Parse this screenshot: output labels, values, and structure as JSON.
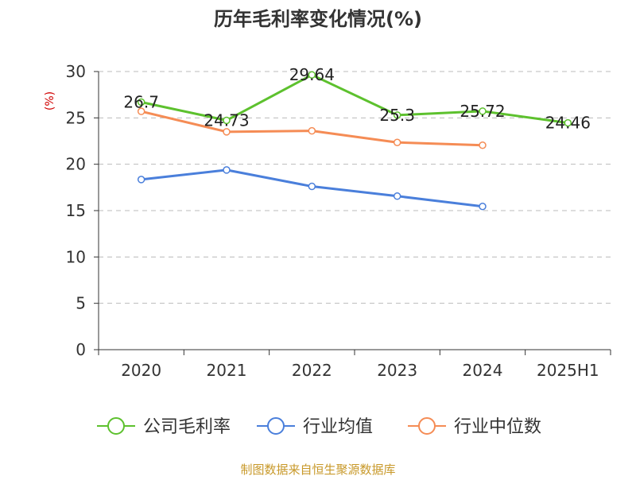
{
  "chart_data": {
    "type": "line",
    "title": "历年毛利率变化情况(%)",
    "ylabel": "(%)",
    "xlabel": "",
    "categories": [
      "2020",
      "2021",
      "2022",
      "2023",
      "2024",
      "2025H1"
    ],
    "ylim": [
      0,
      30
    ],
    "yticks": [
      0,
      5,
      10,
      15,
      20,
      25,
      30
    ],
    "grid": true,
    "legend_position": "bottom",
    "series": [
      {
        "name": "公司毛利率",
        "color": "#5dc12e",
        "values": [
          26.7,
          24.73,
          29.64,
          25.3,
          25.72,
          24.46
        ],
        "labels": [
          "26.7",
          "24.73",
          "29.64",
          "25.3",
          "25.72",
          "24.46"
        ]
      },
      {
        "name": "行业均值",
        "color": "#4a7fdb",
        "values": [
          18.35,
          19.38,
          17.61,
          16.56,
          15.45,
          null
        ]
      },
      {
        "name": "行业中位数",
        "color": "#f58c55",
        "values": [
          25.7,
          23.5,
          23.6,
          22.35,
          22.05,
          null
        ]
      }
    ]
  },
  "footer": {
    "source": "制图数据来自恒生聚源数据库"
  }
}
